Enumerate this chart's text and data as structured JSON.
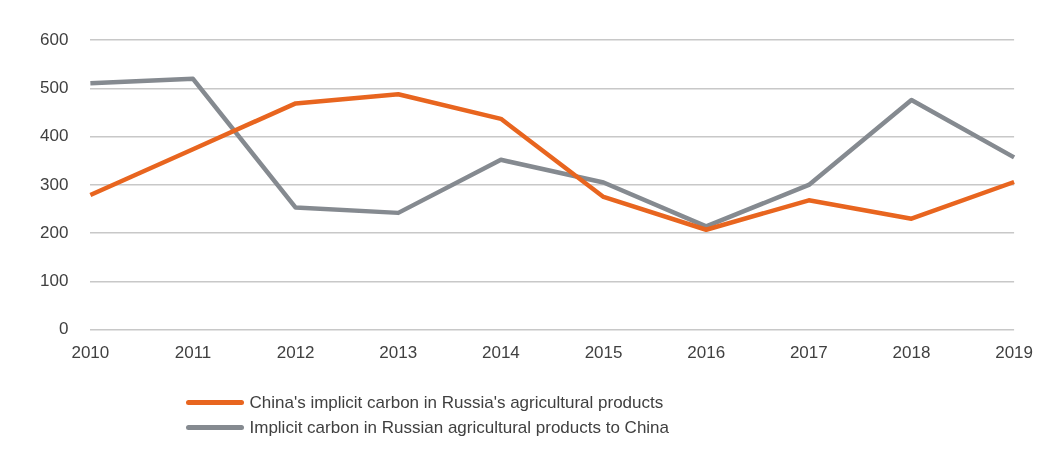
{
  "chart_data": {
    "type": "line",
    "categories": [
      "2010",
      "2011",
      "2012",
      "2013",
      "2014",
      "2015",
      "2016",
      "2017",
      "2018",
      "2019"
    ],
    "series": [
      {
        "name": "China's implicit carbon in Russia's agricultural products",
        "color": "#e8651f",
        "values": [
          279,
          374,
          469,
          488,
          437,
          275,
          207,
          268,
          230,
          306
        ]
      },
      {
        "name": "Implicit carbon in Russian agricultural products to China",
        "color": "#858a90",
        "values": [
          511,
          520,
          253,
          242,
          352,
          305,
          214,
          300,
          476,
          357
        ]
      }
    ],
    "ylim": [
      0,
      600
    ],
    "yticks": [
      0,
      100,
      200,
      300,
      400,
      500,
      600
    ],
    "grid": "y",
    "legend": "bottom",
    "marker": "none",
    "line_style": "solid"
  }
}
